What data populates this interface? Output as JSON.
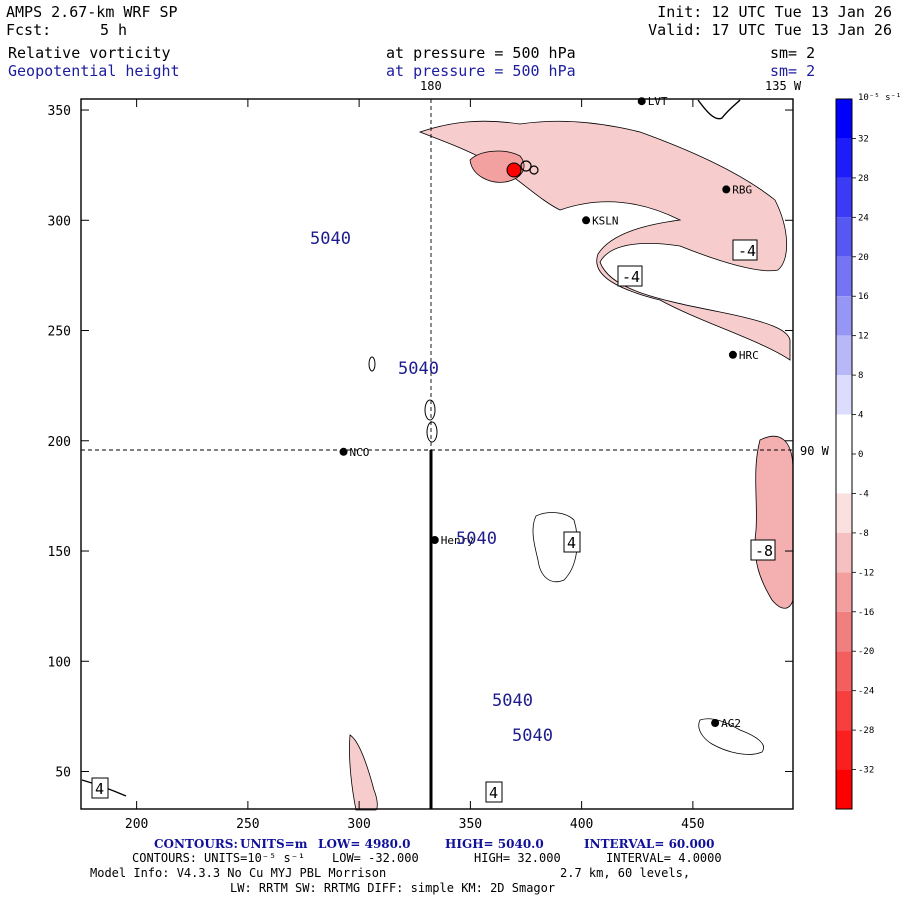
{
  "header": {
    "model": "AMPS 2.67-km WRF SP",
    "forecast_label": "Fcst:",
    "forecast_hours": "5 h",
    "init": "Init: 12 UTC Tue 13 Jan 26",
    "valid": "Valid: 17 UTC Tue 13 Jan 26",
    "field1_name": "Relative vorticity",
    "field1_level": "at pressure =  500 hPa",
    "field1_smooth": "sm= 2",
    "field2_name": "Geopotential height",
    "field2_level": "at pressure =  500 hPa",
    "field2_smooth": "sm= 2"
  },
  "colors": {
    "height_contour": "#1c1c8c",
    "negative_fill": "#f4c6c6",
    "accent_blue": "#1c1ca0",
    "accent_red": "#ff0000"
  },
  "map": {
    "x_axis": {
      "min": 175,
      "max": 495,
      "ticks": [
        "200",
        "250",
        "300",
        "350",
        "400",
        "450"
      ],
      "tick_values": [
        200,
        250,
        300,
        350,
        400,
        450
      ]
    },
    "y_axis": {
      "min": 33,
      "max": 355,
      "ticks": [
        "50",
        "100",
        "150",
        "200",
        "250",
        "300",
        "350"
      ],
      "tick_values": [
        50,
        100,
        150,
        200,
        250,
        300,
        350
      ]
    },
    "meridian_label": "180",
    "meridian_top_label": "135 W",
    "parallel_label": "90 W",
    "stations": [
      {
        "name": "LVT",
        "x": 427,
        "y": 354
      },
      {
        "name": "RBG",
        "x": 465,
        "y": 314
      },
      {
        "name": "KSLN",
        "x": 402,
        "y": 300
      },
      {
        "name": "HRC",
        "x": 468,
        "y": 239
      },
      {
        "name": "NCO",
        "x": 293,
        "y": 195
      },
      {
        "name": "Henry",
        "x": 334,
        "y": 155
      },
      {
        "name": "AG2",
        "x": 460,
        "y": 72
      }
    ],
    "height_contour_labels": [
      "5040",
      "5040",
      "5040",
      "5040",
      "5040"
    ],
    "vorticity_box_labels": [
      "-4",
      "-4",
      "4",
      "-8",
      "4",
      "4"
    ]
  },
  "colorbar": {
    "units": "10⁻⁵ s⁻¹",
    "labels": [
      "32",
      "28",
      "24",
      "20",
      "16",
      "12",
      "8",
      "4",
      "0",
      "-4",
      "-8",
      "-12",
      "-16",
      "-20",
      "-24",
      "-28",
      "-32"
    ],
    "colors": [
      "#0000ff",
      "#1d1dfb",
      "#3a3af7",
      "#5757f4",
      "#7474f4",
      "#9696f6",
      "#b8b8f9",
      "#dcdcfc",
      "#ffffff",
      "#ffffff",
      "#fbe0e0",
      "#f7c0c0",
      "#f39f9f",
      "#f07f7f",
      "#f35f5f",
      "#f73f3f",
      "#fb1f1f",
      "#ff0000"
    ]
  },
  "footer": {
    "contours1_label": "CONTOURS:",
    "contours1_units": "UNITS=m",
    "contours1_low": "LOW=   4980.0",
    "contours1_high": "HIGH=   5040.0",
    "contours1_interval": "INTERVAL=   60.000",
    "contours2_label": "CONTOURS:",
    "contours2_units": "UNITS=10⁻⁵ s⁻¹",
    "contours2_low": "LOW=  -32.000",
    "contours2_high": "HIGH=  32.000",
    "contours2_interval": "INTERVAL=   4.0000",
    "model_info": "Model Info: V4.3.3    No Cu    MYJ PBL   Morrison",
    "resolution": "2.7 km,   60 levels,",
    "physics": "LW: RRTM SW: RRTMG    DIFF: simple KM: 2D Smagor"
  }
}
